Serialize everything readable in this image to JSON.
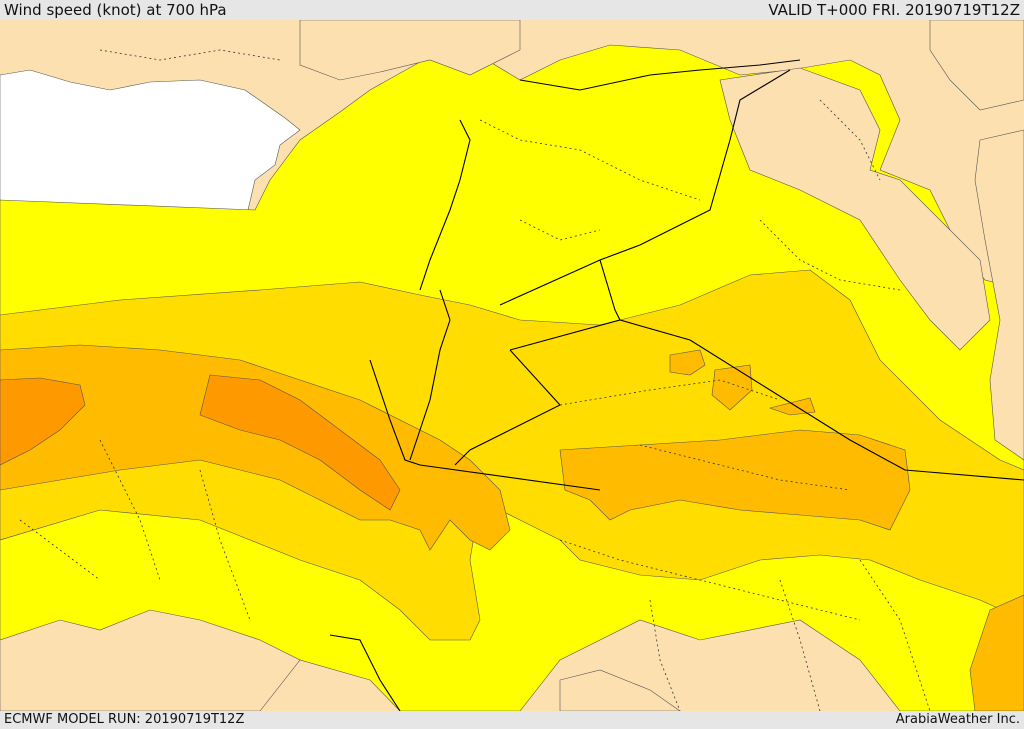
{
  "header": {
    "title": "Wind speed (knot) at 700 hPa",
    "valid": "VALID T+000 FRI. 20190719T12Z"
  },
  "footer": {
    "run": "ECMWF MODEL RUN: 20190719T12Z",
    "credit": "ArabiaWeather Inc."
  },
  "palette": {
    "sea": "#ffffff",
    "land_calm": "#fde0b0",
    "speed_band_1": "#ffff00",
    "speed_band_2": "#ffdd00",
    "speed_band_3": "#ffbb00",
    "speed_band_4": "#ff9900",
    "border_line": "#000000"
  }
}
